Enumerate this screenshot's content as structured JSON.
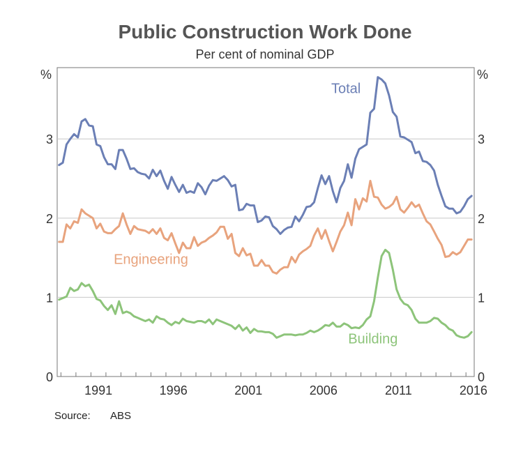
{
  "title": "Public Construction Work Done",
  "subtitle": "Per cent of nominal GDP",
  "source_label": "Source:",
  "source_value": "ABS",
  "chart_data": {
    "type": "line",
    "title": "Public Construction Work Done",
    "subtitle": "Per cent of nominal GDP",
    "ylabel_left": "%",
    "ylabel_right": "%",
    "ylim": [
      0,
      3.9
    ],
    "yticks": [
      0,
      1,
      2,
      3
    ],
    "xlim": [
      1988.75,
      2016.55
    ],
    "xticks": [
      "1991",
      "1996",
      "2001",
      "2006",
      "2011",
      "2016"
    ],
    "grid": true,
    "series": [
      {
        "name": "Total",
        "color": "#6b7fb5",
        "x": [
          1988.875,
          1989.125,
          1989.375,
          1989.625,
          1989.875,
          1990.125,
          1990.375,
          1990.625,
          1990.875,
          1991.125,
          1991.375,
          1991.625,
          1991.875,
          1992.125,
          1992.375,
          1992.625,
          1992.875,
          1993.125,
          1993.375,
          1993.625,
          1993.875,
          1994.125,
          1994.375,
          1994.625,
          1994.875,
          1995.125,
          1995.375,
          1995.625,
          1995.875,
          1996.125,
          1996.375,
          1996.625,
          1996.875,
          1997.125,
          1997.375,
          1997.625,
          1997.875,
          1998.125,
          1998.375,
          1998.625,
          1998.875,
          1999.125,
          1999.375,
          1999.625,
          1999.875,
          2000.125,
          2000.375,
          2000.625,
          2000.875,
          2001.125,
          2001.375,
          2001.625,
          2001.875,
          2002.125,
          2002.375,
          2002.625,
          2002.875,
          2003.125,
          2003.375,
          2003.625,
          2003.875,
          2004.125,
          2004.375,
          2004.625,
          2004.875,
          2005.125,
          2005.375,
          2005.625,
          2005.875,
          2006.125,
          2006.375,
          2006.625,
          2006.875,
          2007.125,
          2007.375,
          2007.625,
          2007.875,
          2008.125,
          2008.375,
          2008.625,
          2008.875,
          2009.125,
          2009.375,
          2009.625,
          2009.875,
          2010.125,
          2010.375,
          2010.625,
          2010.875,
          2011.125,
          2011.375,
          2011.625,
          2011.875,
          2012.125,
          2012.375,
          2012.625,
          2012.875,
          2013.125,
          2013.375,
          2013.625,
          2013.875,
          2014.125,
          2014.375,
          2014.625,
          2014.875,
          2015.125,
          2015.375,
          2015.625,
          2015.875,
          2016.125,
          2016.375
        ],
        "values": [
          2.67,
          2.7,
          2.93,
          3.0,
          3.06,
          3.02,
          3.22,
          3.25,
          3.17,
          3.16,
          2.93,
          2.91,
          2.77,
          2.68,
          2.68,
          2.62,
          2.86,
          2.86,
          2.75,
          2.62,
          2.63,
          2.58,
          2.56,
          2.55,
          2.5,
          2.61,
          2.53,
          2.6,
          2.47,
          2.37,
          2.52,
          2.42,
          2.33,
          2.42,
          2.32,
          2.34,
          2.32,
          2.44,
          2.39,
          2.3,
          2.41,
          2.48,
          2.47,
          2.5,
          2.53,
          2.48,
          2.4,
          2.42,
          2.1,
          2.11,
          2.18,
          2.16,
          2.16,
          1.95,
          1.97,
          2.02,
          2.01,
          1.9,
          1.86,
          1.8,
          1.85,
          1.88,
          1.89,
          2.02,
          1.96,
          2.04,
          2.14,
          2.15,
          2.2,
          2.38,
          2.54,
          2.43,
          2.53,
          2.34,
          2.2,
          2.38,
          2.47,
          2.68,
          2.51,
          2.75,
          2.87,
          2.9,
          2.93,
          3.33,
          3.38,
          3.78,
          3.75,
          3.7,
          3.55,
          3.34,
          3.28,
          3.03,
          3.02,
          2.99,
          2.96,
          2.82,
          2.84,
          2.72,
          2.71,
          2.67,
          2.6,
          2.42,
          2.28,
          2.15,
          2.12,
          2.12,
          2.06,
          2.08,
          2.15,
          2.24,
          2.28
        ]
      },
      {
        "name": "Engineering",
        "color": "#e8a37d",
        "x": [
          1988.875,
          1989.125,
          1989.375,
          1989.625,
          1989.875,
          1990.125,
          1990.375,
          1990.625,
          1990.875,
          1991.125,
          1991.375,
          1991.625,
          1991.875,
          1992.125,
          1992.375,
          1992.625,
          1992.875,
          1993.125,
          1993.375,
          1993.625,
          1993.875,
          1994.125,
          1994.375,
          1994.625,
          1994.875,
          1995.125,
          1995.375,
          1995.625,
          1995.875,
          1996.125,
          1996.375,
          1996.625,
          1996.875,
          1997.125,
          1997.375,
          1997.625,
          1997.875,
          1998.125,
          1998.375,
          1998.625,
          1998.875,
          1999.125,
          1999.375,
          1999.625,
          1999.875,
          2000.125,
          2000.375,
          2000.625,
          2000.875,
          2001.125,
          2001.375,
          2001.625,
          2001.875,
          2002.125,
          2002.375,
          2002.625,
          2002.875,
          2003.125,
          2003.375,
          2003.625,
          2003.875,
          2004.125,
          2004.375,
          2004.625,
          2004.875,
          2005.125,
          2005.375,
          2005.625,
          2005.875,
          2006.125,
          2006.375,
          2006.625,
          2006.875,
          2007.125,
          2007.375,
          2007.625,
          2007.875,
          2008.125,
          2008.375,
          2008.625,
          2008.875,
          2009.125,
          2009.375,
          2009.625,
          2009.875,
          2010.125,
          2010.375,
          2010.625,
          2010.875,
          2011.125,
          2011.375,
          2011.625,
          2011.875,
          2012.125,
          2012.375,
          2012.625,
          2012.875,
          2013.125,
          2013.375,
          2013.625,
          2013.875,
          2014.125,
          2014.375,
          2014.625,
          2014.875,
          2015.125,
          2015.375,
          2015.625,
          2015.875,
          2016.125,
          2016.375
        ],
        "values": [
          1.7,
          1.7,
          1.92,
          1.87,
          1.96,
          1.94,
          2.11,
          2.06,
          2.03,
          2.0,
          1.87,
          1.93,
          1.83,
          1.81,
          1.81,
          1.86,
          1.9,
          2.06,
          1.92,
          1.8,
          1.9,
          1.86,
          1.85,
          1.84,
          1.81,
          1.86,
          1.8,
          1.87,
          1.75,
          1.72,
          1.81,
          1.68,
          1.56,
          1.69,
          1.62,
          1.62,
          1.76,
          1.65,
          1.69,
          1.71,
          1.75,
          1.78,
          1.82,
          1.89,
          1.89,
          1.74,
          1.8,
          1.56,
          1.52,
          1.62,
          1.53,
          1.55,
          1.4,
          1.4,
          1.47,
          1.4,
          1.4,
          1.32,
          1.3,
          1.35,
          1.38,
          1.38,
          1.51,
          1.44,
          1.54,
          1.58,
          1.61,
          1.65,
          1.78,
          1.87,
          1.74,
          1.85,
          1.71,
          1.58,
          1.7,
          1.83,
          1.91,
          2.07,
          1.91,
          2.24,
          2.11,
          2.25,
          2.21,
          2.47,
          2.27,
          2.26,
          2.17,
          2.12,
          2.14,
          2.18,
          2.27,
          2.11,
          2.07,
          2.13,
          2.2,
          2.14,
          2.17,
          2.06,
          1.96,
          1.92,
          1.83,
          1.74,
          1.66,
          1.51,
          1.52,
          1.57,
          1.54,
          1.57,
          1.65,
          1.73,
          1.73
        ]
      },
      {
        "name": "Building",
        "color": "#8dc47a",
        "x": [
          1988.875,
          1989.125,
          1989.375,
          1989.625,
          1989.875,
          1990.125,
          1990.375,
          1990.625,
          1990.875,
          1991.125,
          1991.375,
          1991.625,
          1991.875,
          1992.125,
          1992.375,
          1992.625,
          1992.875,
          1993.125,
          1993.375,
          1993.625,
          1993.875,
          1994.125,
          1994.375,
          1994.625,
          1994.875,
          1995.125,
          1995.375,
          1995.625,
          1995.875,
          1996.125,
          1996.375,
          1996.625,
          1996.875,
          1997.125,
          1997.375,
          1997.625,
          1997.875,
          1998.125,
          1998.375,
          1998.625,
          1998.875,
          1999.125,
          1999.375,
          1999.625,
          1999.875,
          2000.125,
          2000.375,
          2000.625,
          2000.875,
          2001.125,
          2001.375,
          2001.625,
          2001.875,
          2002.125,
          2002.375,
          2002.625,
          2002.875,
          2003.125,
          2003.375,
          2003.625,
          2003.875,
          2004.125,
          2004.375,
          2004.625,
          2004.875,
          2005.125,
          2005.375,
          2005.625,
          2005.875,
          2006.125,
          2006.375,
          2006.625,
          2006.875,
          2007.125,
          2007.375,
          2007.625,
          2007.875,
          2008.125,
          2008.375,
          2008.625,
          2008.875,
          2009.125,
          2009.375,
          2009.625,
          2009.875,
          2010.125,
          2010.375,
          2010.625,
          2010.875,
          2011.125,
          2011.375,
          2011.625,
          2011.875,
          2012.125,
          2012.375,
          2012.625,
          2012.875,
          2013.125,
          2013.375,
          2013.625,
          2013.875,
          2014.125,
          2014.375,
          2014.625,
          2014.875,
          2015.125,
          2015.375,
          2015.625,
          2015.875,
          2016.125,
          2016.375
        ],
        "values": [
          0.97,
          0.99,
          1.01,
          1.12,
          1.08,
          1.1,
          1.18,
          1.14,
          1.16,
          1.08,
          0.98,
          0.96,
          0.89,
          0.84,
          0.9,
          0.79,
          0.95,
          0.8,
          0.82,
          0.8,
          0.76,
          0.74,
          0.72,
          0.7,
          0.72,
          0.68,
          0.76,
          0.73,
          0.72,
          0.68,
          0.65,
          0.69,
          0.67,
          0.73,
          0.7,
          0.69,
          0.68,
          0.7,
          0.7,
          0.68,
          0.72,
          0.66,
          0.72,
          0.7,
          0.68,
          0.66,
          0.64,
          0.6,
          0.65,
          0.58,
          0.62,
          0.55,
          0.6,
          0.57,
          0.57,
          0.56,
          0.56,
          0.54,
          0.49,
          0.51,
          0.53,
          0.53,
          0.53,
          0.52,
          0.53,
          0.53,
          0.55,
          0.58,
          0.56,
          0.58,
          0.61,
          0.65,
          0.64,
          0.68,
          0.63,
          0.63,
          0.67,
          0.65,
          0.61,
          0.62,
          0.61,
          0.65,
          0.72,
          0.76,
          0.95,
          1.25,
          1.52,
          1.6,
          1.56,
          1.35,
          1.1,
          0.98,
          0.92,
          0.9,
          0.84,
          0.73,
          0.68,
          0.68,
          0.68,
          0.7,
          0.74,
          0.73,
          0.68,
          0.65,
          0.6,
          0.58,
          0.52,
          0.5,
          0.49,
          0.51,
          0.56
        ]
      }
    ],
    "series_labels": [
      {
        "name": "Total",
        "text": "Total",
        "x": 2008.0,
        "y": 3.58
      },
      {
        "name": "Engineering",
        "text": "Engineering",
        "x": 1995.0,
        "y": 1.42
      },
      {
        "name": "Building",
        "text": "Building",
        "x": 2009.8,
        "y": 0.42
      }
    ]
  }
}
